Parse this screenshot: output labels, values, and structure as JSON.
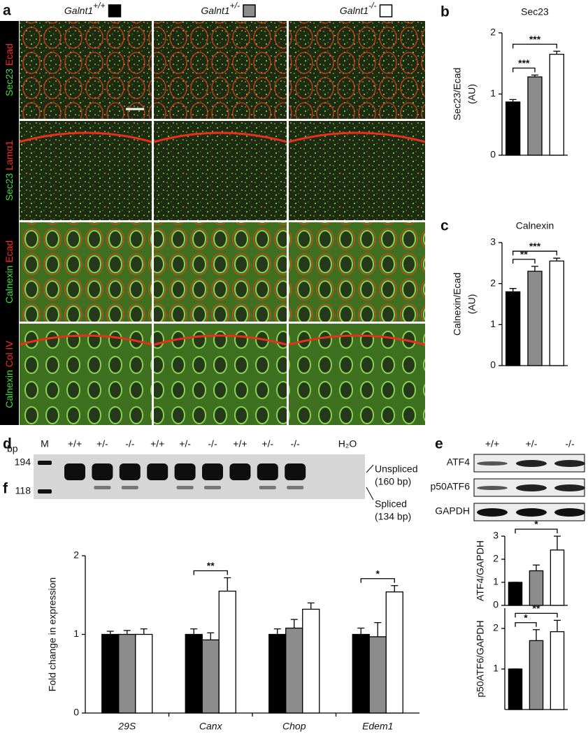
{
  "panel_a": {
    "label": "a",
    "headers": [
      {
        "gene": "Galnt1",
        "genotype": "+/+",
        "color": "#000000"
      },
      {
        "gene": "Galnt1",
        "genotype": "+/-",
        "color": "#8c8c8c"
      },
      {
        "gene": "Galnt1",
        "genotype": "-/-",
        "color": "#ffffff"
      }
    ],
    "rows": [
      {
        "green": "Sec23",
        "red": "Ecad"
      },
      {
        "green": "Sec23",
        "red": "Lamα1"
      },
      {
        "green": "Calnexin",
        "red": "Ecad"
      },
      {
        "green": "Calnexin",
        "red": "Col IV"
      }
    ]
  },
  "panel_d": {
    "label": "d",
    "unit": "bp",
    "marker": "M",
    "lanes": [
      "+/+",
      "+/-",
      "-/-",
      "+/+",
      "+/-",
      "-/-",
      "+/+",
      "+/-",
      "-/-"
    ],
    "water": "H₂O",
    "sizes": [
      194,
      118
    ],
    "bands": [
      {
        "label": "Unspliced",
        "size": "(160 bp)"
      },
      {
        "label": "Spliced",
        "size": "(134 bp)"
      }
    ]
  },
  "panel_e": {
    "label": "e",
    "lanes": [
      "+/+",
      "+/-",
      "-/-"
    ],
    "blots": [
      "ATF4",
      "p50ATF6",
      "GAPDH"
    ]
  },
  "chart_data": [
    {
      "panel": "b",
      "type": "bar",
      "title": "Sec23",
      "y_label": [
        "Sec23/Ecad",
        "(AU)"
      ],
      "ylim": [
        0,
        2
      ],
      "yticks": [
        0,
        1,
        2
      ],
      "colors": [
        "#000000",
        "#8c8c8c",
        "#ffffff"
      ],
      "values": [
        0.87,
        1.28,
        1.65
      ],
      "errors": [
        0.04,
        0.03,
        0.05
      ],
      "significance": [
        {
          "from": 0,
          "to": 1,
          "label": "***"
        },
        {
          "from": 0,
          "to": 2,
          "label": "***"
        }
      ]
    },
    {
      "panel": "c",
      "type": "bar",
      "title": "Calnexin",
      "y_label": [
        "Calnexin/Ecad",
        "(AU)"
      ],
      "ylim": [
        0,
        3
      ],
      "yticks": [
        0,
        1,
        2,
        3
      ],
      "colors": [
        "#000000",
        "#8c8c8c",
        "#ffffff"
      ],
      "values": [
        1.8,
        2.3,
        2.55
      ],
      "errors": [
        0.08,
        0.12,
        0.07
      ],
      "significance": [
        {
          "from": 0,
          "to": 1,
          "label": "**"
        },
        {
          "from": 0,
          "to": 2,
          "label": "***"
        }
      ]
    },
    {
      "type": "bar",
      "y_label": [
        "ATF4/GAPDH"
      ],
      "ylim": [
        0,
        3
      ],
      "yticks": [
        0,
        1,
        2,
        3
      ],
      "colors": [
        "#000000",
        "#8c8c8c",
        "#ffffff"
      ],
      "values": [
        1,
        1.5,
        2.4
      ],
      "errors": [
        0,
        0.25,
        0.6
      ],
      "significance": [
        {
          "from": 0,
          "to": 2,
          "label": "*"
        }
      ]
    },
    {
      "type": "bar",
      "y_label": [
        "p50ATF6/GAPDH"
      ],
      "ylim": [
        0,
        2.5
      ],
      "yticks": [
        1,
        2
      ],
      "colors": [
        "#000000",
        "#8c8c8c",
        "#ffffff"
      ],
      "values": [
        1,
        1.7,
        1.92
      ],
      "errors": [
        0,
        0.27,
        0.28
      ],
      "significance": [
        {
          "from": 0,
          "to": 1,
          "label": "*"
        },
        {
          "from": 0,
          "to": 2,
          "label": "**"
        }
      ]
    },
    {
      "panel": "f",
      "type": "grouped_bar",
      "y_label": [
        "Fold change in expression"
      ],
      "ylim": [
        0,
        2
      ],
      "yticks": [
        0,
        1,
        2
      ],
      "categories": [
        "29S",
        "Canx",
        "Chop",
        "Edem1"
      ],
      "series": [
        {
          "color": "#000000",
          "values": [
            1.0,
            1.0,
            1.0,
            1.0
          ],
          "errors": [
            0.04,
            0.07,
            0.07,
            0.08
          ]
        },
        {
          "color": "#8c8c8c",
          "values": [
            1.0,
            0.93,
            1.08,
            0.97
          ],
          "errors": [
            0.05,
            0.09,
            0.11,
            0.18
          ]
        },
        {
          "color": "#ffffff",
          "values": [
            1.0,
            1.55,
            1.32,
            1.54
          ],
          "errors": [
            0.07,
            0.17,
            0.08,
            0.08
          ]
        }
      ],
      "significance": [
        {
          "category": 1,
          "from": 0,
          "to": 2,
          "label": "**"
        },
        {
          "category": 3,
          "from": 0,
          "to": 2,
          "label": "*"
        }
      ]
    }
  ]
}
